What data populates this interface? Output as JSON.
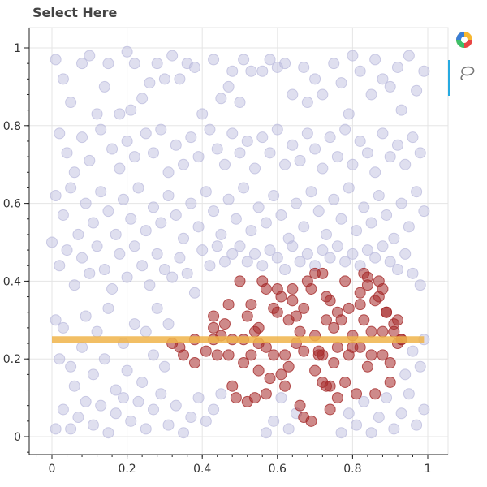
{
  "title": "Select Here",
  "toolbar": {
    "logo_icon": "bokeh-logo-icon",
    "tools": [
      {
        "name": "lasso-select-icon",
        "active": true
      }
    ]
  },
  "chart_data": {
    "type": "scatter",
    "title": "Select Here",
    "xlabel": "",
    "ylabel": "",
    "xlim": [
      -0.05,
      1.05
    ],
    "ylim": [
      -0.05,
      1.05
    ],
    "x_ticks": [
      0,
      0.2,
      0.4,
      0.6,
      0.8,
      1
    ],
    "y_ticks": [
      0,
      0.2,
      0.4,
      0.6,
      0.8,
      1
    ],
    "grid": true,
    "unselected_color": "#b8b8db",
    "selected_color": "#a52a2a",
    "lasso_line": {
      "y": 0.25,
      "x_range": [
        0.0,
        0.99
      ],
      "color": "#f0b44a"
    },
    "selected_points": [
      [
        0.32,
        0.24
      ],
      [
        0.34,
        0.23
      ],
      [
        0.35,
        0.21
      ],
      [
        0.38,
        0.25
      ],
      [
        0.38,
        0.19
      ],
      [
        0.41,
        0.22
      ],
      [
        0.43,
        0.31
      ],
      [
        0.43,
        0.28
      ],
      [
        0.43,
        0.25
      ],
      [
        0.44,
        0.21
      ],
      [
        0.46,
        0.29
      ],
      [
        0.47,
        0.21
      ],
      [
        0.48,
        0.13
      ],
      [
        0.48,
        0.25
      ],
      [
        0.49,
        0.1
      ],
      [
        0.5,
        0.4
      ],
      [
        0.51,
        0.25
      ],
      [
        0.51,
        0.19
      ],
      [
        0.52,
        0.09
      ],
      [
        0.52,
        0.31
      ],
      [
        0.53,
        0.21
      ],
      [
        0.54,
        0.1
      ],
      [
        0.54,
        0.27
      ],
      [
        0.55,
        0.17
      ],
      [
        0.55,
        0.28
      ],
      [
        0.56,
        0.4
      ],
      [
        0.57,
        0.11
      ],
      [
        0.57,
        0.23
      ],
      [
        0.57,
        0.38
      ],
      [
        0.58,
        0.15
      ],
      [
        0.59,
        0.33
      ],
      [
        0.59,
        0.21
      ],
      [
        0.6,
        0.32
      ],
      [
        0.61,
        0.36
      ],
      [
        0.62,
        0.21
      ],
      [
        0.62,
        0.13
      ],
      [
        0.63,
        0.3
      ],
      [
        0.64,
        0.35
      ],
      [
        0.64,
        0.38
      ],
      [
        0.65,
        0.24
      ],
      [
        0.65,
        0.31
      ],
      [
        0.66,
        0.08
      ],
      [
        0.67,
        0.05
      ],
      [
        0.67,
        0.33
      ],
      [
        0.67,
        0.22
      ],
      [
        0.68,
        0.4
      ],
      [
        0.69,
        0.38
      ],
      [
        0.7,
        0.26
      ],
      [
        0.7,
        0.17
      ],
      [
        0.71,
        0.22
      ],
      [
        0.71,
        0.21
      ],
      [
        0.72,
        0.21
      ],
      [
        0.72,
        0.14
      ],
      [
        0.72,
        0.42
      ],
      [
        0.73,
        0.13
      ],
      [
        0.73,
        0.36
      ],
      [
        0.73,
        0.3
      ],
      [
        0.74,
        0.13
      ],
      [
        0.74,
        0.07
      ],
      [
        0.75,
        0.19
      ],
      [
        0.75,
        0.28
      ],
      [
        0.76,
        0.23
      ],
      [
        0.76,
        0.32
      ],
      [
        0.77,
        0.3
      ],
      [
        0.78,
        0.14
      ],
      [
        0.78,
        0.4
      ],
      [
        0.79,
        0.33
      ],
      [
        0.79,
        0.21
      ],
      [
        0.8,
        0.26
      ],
      [
        0.81,
        0.11
      ],
      [
        0.82,
        0.37
      ],
      [
        0.82,
        0.23
      ],
      [
        0.83,
        0.42
      ],
      [
        0.83,
        0.3
      ],
      [
        0.84,
        0.41
      ],
      [
        0.84,
        0.18
      ],
      [
        0.85,
        0.27
      ],
      [
        0.85,
        0.21
      ],
      [
        0.86,
        0.11
      ],
      [
        0.86,
        0.35
      ],
      [
        0.87,
        0.4
      ],
      [
        0.87,
        0.36
      ],
      [
        0.88,
        0.27
      ],
      [
        0.88,
        0.21
      ],
      [
        0.89,
        0.32
      ],
      [
        0.9,
        0.14
      ],
      [
        0.9,
        0.19
      ],
      [
        0.91,
        0.27
      ],
      [
        0.91,
        0.29
      ],
      [
        0.92,
        0.24
      ],
      [
        0.93,
        0.25
      ],
      [
        0.93,
        0.25
      ],
      [
        0.53,
        0.34
      ],
      [
        0.6,
        0.38
      ],
      [
        0.63,
        0.18
      ],
      [
        0.69,
        0.04
      ],
      [
        0.7,
        0.42
      ],
      [
        0.76,
        0.1
      ],
      [
        0.82,
        0.34
      ],
      [
        0.89,
        0.32
      ],
      [
        0.45,
        0.26
      ],
      [
        0.47,
        0.34
      ],
      [
        0.55,
        0.24
      ],
      [
        0.61,
        0.16
      ],
      [
        0.66,
        0.27
      ],
      [
        0.74,
        0.35
      ],
      [
        0.8,
        0.23
      ],
      [
        0.84,
        0.39
      ],
      [
        0.88,
        0.38
      ],
      [
        0.92,
        0.3
      ]
    ],
    "unselected_points": [
      [
        0.01,
        0.97
      ],
      [
        0.03,
        0.92
      ],
      [
        0.05,
        0.86
      ],
      [
        0.08,
        0.96
      ],
      [
        0.1,
        0.98
      ],
      [
        0.12,
        0.83
      ],
      [
        0.14,
        0.9
      ],
      [
        0.15,
        0.96
      ],
      [
        0.18,
        0.83
      ],
      [
        0.2,
        0.99
      ],
      [
        0.21,
        0.84
      ],
      [
        0.22,
        0.96
      ],
      [
        0.24,
        0.87
      ],
      [
        0.26,
        0.91
      ],
      [
        0.28,
        0.96
      ],
      [
        0.3,
        0.92
      ],
      [
        0.32,
        0.98
      ],
      [
        0.34,
        0.92
      ],
      [
        0.36,
        0.96
      ],
      [
        0.38,
        0.95
      ],
      [
        0.4,
        0.83
      ],
      [
        0.43,
        0.97
      ],
      [
        0.45,
        0.87
      ],
      [
        0.47,
        0.9
      ],
      [
        0.48,
        0.94
      ],
      [
        0.5,
        0.86
      ],
      [
        0.51,
        0.97
      ],
      [
        0.53,
        0.94
      ],
      [
        0.56,
        0.94
      ],
      [
        0.58,
        0.97
      ],
      [
        0.6,
        0.95
      ],
      [
        0.62,
        0.96
      ],
      [
        0.64,
        0.88
      ],
      [
        0.67,
        0.95
      ],
      [
        0.68,
        0.86
      ],
      [
        0.7,
        0.92
      ],
      [
        0.72,
        0.88
      ],
      [
        0.75,
        0.96
      ],
      [
        0.77,
        0.91
      ],
      [
        0.79,
        0.83
      ],
      [
        0.8,
        0.98
      ],
      [
        0.82,
        0.94
      ],
      [
        0.85,
        0.88
      ],
      [
        0.86,
        0.97
      ],
      [
        0.88,
        0.92
      ],
      [
        0.9,
        0.9
      ],
      [
        0.92,
        0.95
      ],
      [
        0.93,
        0.84
      ],
      [
        0.95,
        0.98
      ],
      [
        0.97,
        0.89
      ],
      [
        0.99,
        0.94
      ],
      [
        0.02,
        0.78
      ],
      [
        0.04,
        0.73
      ],
      [
        0.06,
        0.68
      ],
      [
        0.08,
        0.77
      ],
      [
        0.1,
        0.71
      ],
      [
        0.13,
        0.79
      ],
      [
        0.16,
        0.74
      ],
      [
        0.18,
        0.69
      ],
      [
        0.2,
        0.76
      ],
      [
        0.22,
        0.72
      ],
      [
        0.25,
        0.78
      ],
      [
        0.27,
        0.73
      ],
      [
        0.29,
        0.79
      ],
      [
        0.31,
        0.68
      ],
      [
        0.33,
        0.75
      ],
      [
        0.35,
        0.7
      ],
      [
        0.37,
        0.77
      ],
      [
        0.39,
        0.72
      ],
      [
        0.42,
        0.79
      ],
      [
        0.44,
        0.74
      ],
      [
        0.46,
        0.7
      ],
      [
        0.48,
        0.78
      ],
      [
        0.5,
        0.73
      ],
      [
        0.52,
        0.76
      ],
      [
        0.54,
        0.69
      ],
      [
        0.56,
        0.77
      ],
      [
        0.58,
        0.73
      ],
      [
        0.6,
        0.79
      ],
      [
        0.62,
        0.7
      ],
      [
        0.64,
        0.75
      ],
      [
        0.66,
        0.71
      ],
      [
        0.68,
        0.78
      ],
      [
        0.7,
        0.74
      ],
      [
        0.72,
        0.69
      ],
      [
        0.74,
        0.77
      ],
      [
        0.76,
        0.72
      ],
      [
        0.78,
        0.79
      ],
      [
        0.8,
        0.7
      ],
      [
        0.82,
        0.76
      ],
      [
        0.84,
        0.73
      ],
      [
        0.86,
        0.68
      ],
      [
        0.88,
        0.78
      ],
      [
        0.9,
        0.72
      ],
      [
        0.92,
        0.75
      ],
      [
        0.94,
        0.7
      ],
      [
        0.96,
        0.77
      ],
      [
        0.98,
        0.73
      ],
      [
        0.01,
        0.62
      ],
      [
        0.03,
        0.57
      ],
      [
        0.05,
        0.64
      ],
      [
        0.07,
        0.52
      ],
      [
        0.09,
        0.6
      ],
      [
        0.11,
        0.55
      ],
      [
        0.13,
        0.63
      ],
      [
        0.15,
        0.58
      ],
      [
        0.17,
        0.52
      ],
      [
        0.19,
        0.61
      ],
      [
        0.21,
        0.56
      ],
      [
        0.23,
        0.64
      ],
      [
        0.25,
        0.53
      ],
      [
        0.27,
        0.59
      ],
      [
        0.29,
        0.55
      ],
      [
        0.31,
        0.62
      ],
      [
        0.33,
        0.57
      ],
      [
        0.35,
        0.51
      ],
      [
        0.37,
        0.6
      ],
      [
        0.39,
        0.54
      ],
      [
        0.41,
        0.63
      ],
      [
        0.43,
        0.58
      ],
      [
        0.45,
        0.52
      ],
      [
        0.47,
        0.61
      ],
      [
        0.49,
        0.56
      ],
      [
        0.51,
        0.64
      ],
      [
        0.53,
        0.53
      ],
      [
        0.55,
        0.59
      ],
      [
        0.57,
        0.55
      ],
      [
        0.59,
        0.62
      ],
      [
        0.61,
        0.57
      ],
      [
        0.63,
        0.51
      ],
      [
        0.65,
        0.6
      ],
      [
        0.67,
        0.54
      ],
      [
        0.69,
        0.63
      ],
      [
        0.71,
        0.58
      ],
      [
        0.73,
        0.52
      ],
      [
        0.75,
        0.61
      ],
      [
        0.77,
        0.56
      ],
      [
        0.79,
        0.64
      ],
      [
        0.81,
        0.53
      ],
      [
        0.83,
        0.59
      ],
      [
        0.85,
        0.55
      ],
      [
        0.87,
        0.62
      ],
      [
        0.89,
        0.57
      ],
      [
        0.91,
        0.51
      ],
      [
        0.93,
        0.6
      ],
      [
        0.95,
        0.54
      ],
      [
        0.97,
        0.63
      ],
      [
        0.99,
        0.58
      ],
      [
        0.0,
        0.5
      ],
      [
        0.02,
        0.44
      ],
      [
        0.04,
        0.48
      ],
      [
        0.06,
        0.39
      ],
      [
        0.08,
        0.46
      ],
      [
        0.1,
        0.42
      ],
      [
        0.12,
        0.49
      ],
      [
        0.14,
        0.43
      ],
      [
        0.16,
        0.38
      ],
      [
        0.18,
        0.47
      ],
      [
        0.2,
        0.41
      ],
      [
        0.22,
        0.49
      ],
      [
        0.24,
        0.44
      ],
      [
        0.26,
        0.39
      ],
      [
        0.28,
        0.47
      ],
      [
        0.3,
        0.43
      ],
      [
        0.32,
        0.41
      ],
      [
        0.34,
        0.46
      ],
      [
        0.36,
        0.42
      ],
      [
        0.38,
        0.37
      ],
      [
        0.4,
        0.48
      ],
      [
        0.42,
        0.44
      ],
      [
        0.44,
        0.49
      ],
      [
        0.46,
        0.45
      ],
      [
        0.48,
        0.47
      ],
      [
        0.5,
        0.49
      ],
      [
        0.52,
        0.45
      ],
      [
        0.54,
        0.47
      ],
      [
        0.56,
        0.44
      ],
      [
        0.58,
        0.48
      ],
      [
        0.6,
        0.46
      ],
      [
        0.62,
        0.43
      ],
      [
        0.64,
        0.49
      ],
      [
        0.66,
        0.45
      ],
      [
        0.68,
        0.47
      ],
      [
        0.7,
        0.44
      ],
      [
        0.72,
        0.48
      ],
      [
        0.74,
        0.46
      ],
      [
        0.76,
        0.49
      ],
      [
        0.78,
        0.45
      ],
      [
        0.8,
        0.47
      ],
      [
        0.82,
        0.44
      ],
      [
        0.84,
        0.48
      ],
      [
        0.86,
        0.46
      ],
      [
        0.88,
        0.49
      ],
      [
        0.9,
        0.45
      ],
      [
        0.92,
        0.43
      ],
      [
        0.94,
        0.47
      ],
      [
        0.96,
        0.42
      ],
      [
        0.98,
        0.39
      ],
      [
        0.01,
        0.3
      ],
      [
        0.02,
        0.2
      ],
      [
        0.03,
        0.28
      ],
      [
        0.05,
        0.18
      ],
      [
        0.06,
        0.13
      ],
      [
        0.08,
        0.23
      ],
      [
        0.09,
        0.31
      ],
      [
        0.11,
        0.16
      ],
      [
        0.12,
        0.27
      ],
      [
        0.14,
        0.2
      ],
      [
        0.15,
        0.33
      ],
      [
        0.17,
        0.12
      ],
      [
        0.19,
        0.24
      ],
      [
        0.2,
        0.17
      ],
      [
        0.22,
        0.29
      ],
      [
        0.24,
        0.14
      ],
      [
        0.25,
        0.27
      ],
      [
        0.27,
        0.21
      ],
      [
        0.28,
        0.33
      ],
      [
        0.3,
        0.18
      ],
      [
        0.31,
        0.29
      ],
      [
        0.01,
        0.02
      ],
      [
        0.03,
        0.07
      ],
      [
        0.05,
        0.02
      ],
      [
        0.07,
        0.05
      ],
      [
        0.09,
        0.09
      ],
      [
        0.11,
        0.03
      ],
      [
        0.13,
        0.08
      ],
      [
        0.15,
        0.01
      ],
      [
        0.17,
        0.06
      ],
      [
        0.19,
        0.1
      ],
      [
        0.21,
        0.04
      ],
      [
        0.23,
        0.09
      ],
      [
        0.25,
        0.02
      ],
      [
        0.27,
        0.07
      ],
      [
        0.29,
        0.11
      ],
      [
        0.31,
        0.03
      ],
      [
        0.33,
        0.08
      ],
      [
        0.35,
        0.01
      ],
      [
        0.37,
        0.05
      ],
      [
        0.39,
        0.1
      ],
      [
        0.41,
        0.04
      ],
      [
        0.43,
        0.07
      ],
      [
        0.45,
        0.11
      ],
      [
        0.57,
        0.01
      ],
      [
        0.59,
        0.04
      ],
      [
        0.61,
        0.1
      ],
      [
        0.63,
        0.02
      ],
      [
        0.65,
        0.06
      ],
      [
        0.77,
        0.01
      ],
      [
        0.79,
        0.06
      ],
      [
        0.81,
        0.03
      ],
      [
        0.83,
        0.09
      ],
      [
        0.85,
        0.01
      ],
      [
        0.87,
        0.05
      ],
      [
        0.89,
        0.1
      ],
      [
        0.91,
        0.02
      ],
      [
        0.93,
        0.06
      ],
      [
        0.95,
        0.11
      ],
      [
        0.97,
        0.03
      ],
      [
        0.99,
        0.07
      ],
      [
        0.94,
        0.16
      ],
      [
        0.96,
        0.22
      ],
      [
        0.98,
        0.18
      ],
      [
        0.99,
        0.25
      ]
    ]
  }
}
